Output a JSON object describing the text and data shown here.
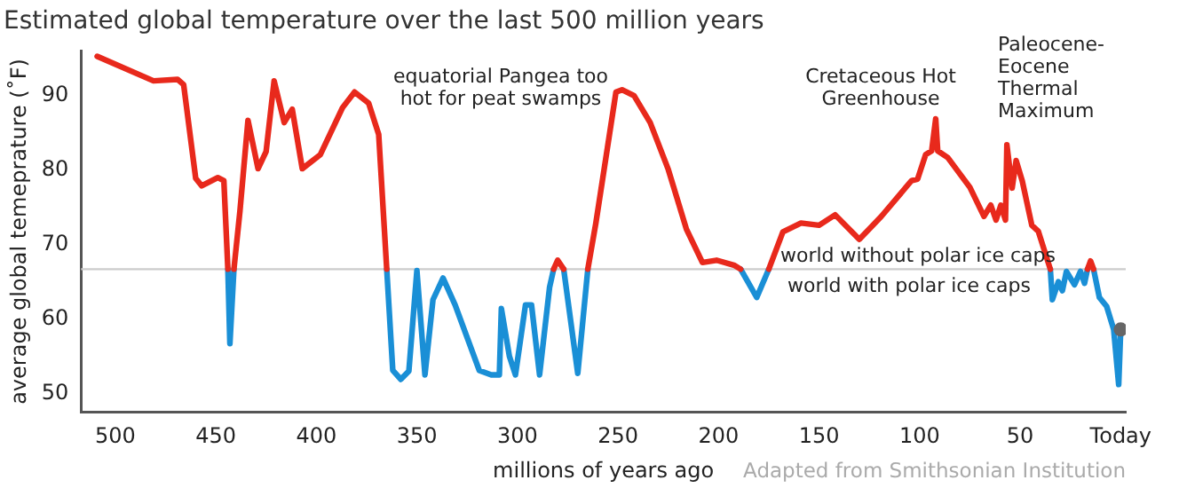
{
  "chart_data": {
    "type": "line",
    "title": "Estimated global temperature over the last 500 million years",
    "xlabel": "millions of years ago",
    "ylabel": "average global temeprature (˚F)",
    "xlim": [
      517,
      -2.5
    ],
    "xticks": [
      500,
      450,
      400,
      350,
      300,
      250,
      200,
      150,
      100,
      50,
      {
        "value": 0,
        "label": "Today"
      }
    ],
    "ylim": [
      47.5,
      96
    ],
    "yticks": [
      50,
      60,
      70,
      80,
      90
    ],
    "grid": false,
    "legend": false,
    "series": [
      {
        "color": "#e8291c",
        "x": [
          509,
          481,
          469,
          466,
          460,
          457,
          449,
          446,
          444,
          443,
          441,
          438,
          434,
          429,
          425,
          421,
          416,
          412,
          407,
          398,
          387,
          381,
          374,
          369,
          365,
          362,
          358,
          354,
          350,
          346,
          342,
          337,
          331,
          319,
          313,
          309,
          308,
          304,
          301,
          296,
          293,
          289,
          284,
          282,
          280,
          277,
          270,
          265,
          261,
          251,
          248,
          242,
          234,
          225,
          216,
          208,
          201,
          192,
          189,
          181,
          175,
          168,
          159,
          150,
          142,
          130,
          119,
          104,
          101,
          97,
          94,
          92,
          91,
          86,
          75,
          68,
          64.6,
          62,
          59.6,
          57.3,
          56.6,
          54,
          52,
          49,
          44.2,
          41,
          35,
          34,
          31,
          29,
          27,
          23,
          20,
          18,
          16.5,
          15,
          13.5
        ],
        "values": [
          95.3,
          92,
          92.2,
          91.5,
          78.9,
          77.9,
          79,
          78.6,
          66.7,
          null,
          66.7,
          74.5,
          86.7,
          80.2,
          82.5,
          92,
          86.4,
          88.2,
          80.2,
          82.1,
          88.4,
          90.5,
          89,
          84.8,
          66.7,
          null,
          null,
          null,
          null,
          null,
          null,
          null,
          null,
          null,
          null,
          null,
          null,
          null,
          null,
          null,
          null,
          null,
          null,
          66.7,
          67.9,
          66.7,
          null,
          66.7,
          72.9,
          90.5,
          90.8,
          90,
          86.4,
          80.1,
          72.1,
          67.6,
          67.9,
          67.2,
          66.7,
          null,
          66.7,
          71.7,
          72.9,
          72.6,
          74,
          70.7,
          73.8,
          78.6,
          78.8,
          82.1,
          82.6,
          86.9,
          82.6,
          81.7,
          77.7,
          73.8,
          75.3,
          73.3,
          75.3,
          73.3,
          83.4,
          77.6,
          81.3,
          78.6,
          72.6,
          71.8,
          66.7,
          null,
          null,
          null,
          null,
          null,
          null,
          null,
          66.7,
          67.8,
          66.7
        ]
      },
      {
        "color": "#1a8fd6",
        "x": [
          444,
          443,
          441,
          438,
          434,
          429,
          425,
          421,
          416,
          412,
          407,
          398,
          387,
          381,
          374,
          369,
          365,
          362,
          358,
          354,
          350,
          346,
          342,
          337,
          331,
          319,
          313,
          309,
          308,
          304,
          301,
          296,
          293,
          289,
          284,
          282,
          280,
          277,
          270,
          265,
          261,
          251,
          248,
          242,
          234,
          225,
          216,
          208,
          201,
          192,
          189,
          181,
          175,
          168,
          159,
          150,
          142,
          130,
          119,
          104,
          101,
          97,
          94,
          92,
          91,
          86,
          75,
          68,
          64.6,
          62,
          59.6,
          57.3,
          56.6,
          54,
          52,
          49,
          44.2,
          41,
          35,
          34,
          31,
          29,
          27,
          23,
          20,
          18,
          16.5,
          15,
          13.5,
          10.6,
          7,
          3.5,
          1,
          0
        ],
        "values": [
          66.7,
          56.7,
          66.7,
          null,
          null,
          null,
          null,
          null,
          null,
          null,
          null,
          null,
          null,
          null,
          null,
          null,
          66.7,
          53.1,
          51.9,
          53,
          66.5,
          52.5,
          62.6,
          65.5,
          61.9,
          53.1,
          52.5,
          52.5,
          61.4,
          55,
          52.5,
          61.9,
          61.9,
          52.5,
          64.3,
          66.7,
          null,
          66.7,
          52.7,
          66.7,
          null,
          null,
          null,
          null,
          null,
          null,
          null,
          null,
          null,
          null,
          66.7,
          62.9,
          66.7,
          null,
          null,
          null,
          null,
          null,
          null,
          null,
          null,
          null,
          null,
          null,
          null,
          null,
          null,
          null,
          null,
          null,
          null,
          null,
          null,
          null,
          null,
          null,
          null,
          null,
          66.7,
          62.6,
          65,
          63.8,
          66.4,
          64.6,
          66.4,
          64.8,
          66.7,
          null,
          66.7,
          62.9,
          61.7,
          58.6,
          51.2,
          58.6
        ]
      },
      {
        "type": "scatter",
        "color": "#666666",
        "x": [
          0
        ],
        "values": [
          58.6
        ]
      }
    ],
    "ref_lines": [
      {
        "axis": "y",
        "value": 66.7,
        "color": "#cccccc"
      }
    ],
    "annotations": [
      "equatorial Pangea too\nhot for peat swamps",
      "Cretaceous Hot\nGreenhouse",
      "Paleocene-\nEocene\nThermal\nMaximum",
      "world without polar ice caps",
      "world with polar ice caps",
      "Adapted from Smithsonian Institution"
    ]
  }
}
